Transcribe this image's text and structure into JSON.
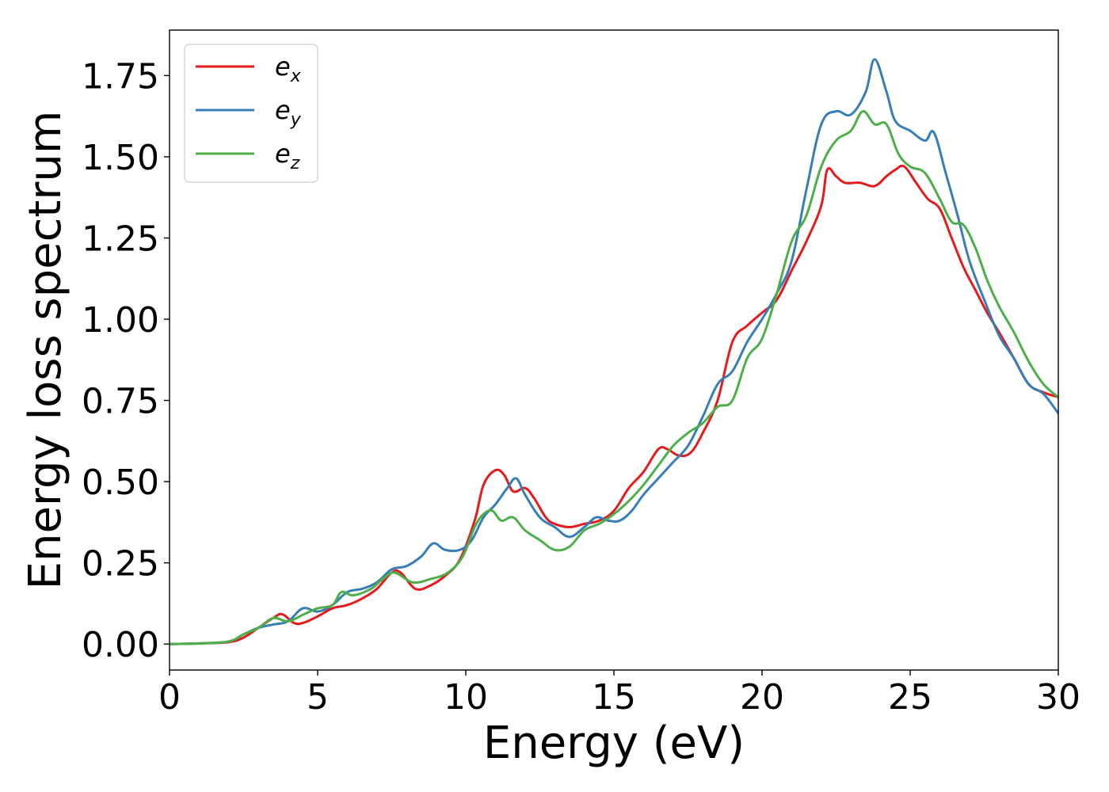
{
  "chart_data": {
    "type": "line",
    "title": "",
    "xlabel": "Energy (eV)",
    "ylabel": "Energy loss spectrum",
    "xlim": [
      0,
      30
    ],
    "ylim": [
      -0.08,
      1.89
    ],
    "xticks": [
      0,
      5,
      10,
      15,
      20,
      25,
      30
    ],
    "xtick_labels": [
      "0",
      "5",
      "10",
      "15",
      "20",
      "25",
      "30"
    ],
    "yticks": [
      0.0,
      0.25,
      0.5,
      0.75,
      1.0,
      1.25,
      1.5,
      1.75
    ],
    "ytick_labels": [
      "0.00",
      "0.25",
      "0.50",
      "0.75",
      "1.00",
      "1.25",
      "1.50",
      "1.75"
    ],
    "grid": false,
    "legend_position": "top-left",
    "series": [
      {
        "name": "e_x",
        "label_base": "e",
        "label_sub": "x",
        "color": "#e41a1c",
        "x": [
          0,
          1,
          2,
          2.5,
          3,
          3.5,
          3.8,
          4.2,
          4.5,
          5.0,
          5.5,
          6.0,
          6.5,
          7.0,
          7.5,
          7.8,
          8.3,
          8.8,
          9.3,
          9.8,
          10.3,
          10.6,
          11.0,
          11.3,
          11.6,
          12.0,
          12.3,
          12.7,
          13.0,
          13.5,
          14.0,
          14.5,
          15.0,
          15.5,
          16.0,
          16.5,
          16.8,
          17.2,
          17.6,
          18.0,
          18.5,
          19.0,
          19.5,
          20.0,
          20.5,
          21.0,
          21.5,
          22.0,
          22.2,
          22.5,
          22.8,
          23.3,
          23.8,
          24.2,
          24.5,
          24.8,
          25.2,
          25.6,
          26.0,
          26.4,
          26.8,
          27.2,
          27.6,
          28.0,
          28.5,
          29.0,
          29.5,
          30.0
        ],
        "y": [
          0.0,
          0.002,
          0.006,
          0.02,
          0.05,
          0.08,
          0.092,
          0.065,
          0.065,
          0.085,
          0.11,
          0.12,
          0.14,
          0.17,
          0.22,
          0.22,
          0.17,
          0.18,
          0.21,
          0.26,
          0.38,
          0.49,
          0.535,
          0.52,
          0.47,
          0.48,
          0.45,
          0.39,
          0.37,
          0.36,
          0.37,
          0.38,
          0.41,
          0.48,
          0.53,
          0.6,
          0.6,
          0.58,
          0.59,
          0.65,
          0.75,
          0.93,
          0.98,
          1.02,
          1.06,
          1.15,
          1.24,
          1.35,
          1.46,
          1.44,
          1.42,
          1.42,
          1.41,
          1.44,
          1.46,
          1.47,
          1.42,
          1.37,
          1.34,
          1.25,
          1.16,
          1.09,
          1.02,
          0.96,
          0.88,
          0.8,
          0.775,
          0.76
        ]
      },
      {
        "name": "e_y",
        "label_base": "e",
        "label_sub": "y",
        "color": "#377eb8",
        "x": [
          0,
          1,
          2,
          2.5,
          3,
          3.5,
          4.0,
          4.5,
          5.0,
          5.5,
          6.0,
          6.5,
          7.0,
          7.5,
          8.0,
          8.5,
          8.9,
          9.3,
          9.8,
          10.2,
          10.6,
          11.0,
          11.4,
          11.7,
          12.0,
          12.5,
          13.0,
          13.5,
          14.0,
          14.4,
          14.8,
          15.2,
          15.6,
          16.0,
          16.5,
          17.0,
          17.5,
          18.0,
          18.5,
          19.0,
          19.5,
          20.0,
          20.5,
          21.0,
          21.5,
          22.0,
          22.5,
          23.0,
          23.5,
          23.8,
          24.2,
          24.5,
          25.0,
          25.5,
          25.8,
          26.2,
          26.6,
          27.0,
          27.5,
          28.0,
          28.5,
          29.0,
          29.5,
          30.0
        ],
        "y": [
          0.0,
          0.002,
          0.008,
          0.03,
          0.05,
          0.06,
          0.07,
          0.11,
          0.1,
          0.12,
          0.16,
          0.17,
          0.19,
          0.23,
          0.24,
          0.27,
          0.31,
          0.29,
          0.29,
          0.32,
          0.39,
          0.43,
          0.48,
          0.51,
          0.46,
          0.39,
          0.36,
          0.33,
          0.36,
          0.39,
          0.38,
          0.38,
          0.41,
          0.46,
          0.51,
          0.56,
          0.61,
          0.7,
          0.8,
          0.84,
          0.93,
          1.0,
          1.08,
          1.18,
          1.4,
          1.6,
          1.64,
          1.63,
          1.7,
          1.8,
          1.7,
          1.61,
          1.58,
          1.55,
          1.575,
          1.45,
          1.32,
          1.18,
          1.06,
          0.95,
          0.88,
          0.8,
          0.77,
          0.71
        ]
      },
      {
        "name": "e_z",
        "label_base": "e",
        "label_sub": "z",
        "color": "#4daf4a",
        "x": [
          0,
          1,
          2,
          2.5,
          3,
          3.5,
          4.0,
          4.5,
          5.0,
          5.5,
          5.8,
          6.2,
          6.8,
          7.2,
          7.6,
          8.2,
          8.8,
          9.4,
          9.9,
          10.3,
          10.6,
          10.9,
          11.2,
          11.6,
          12.0,
          12.5,
          13.0,
          13.5,
          14.0,
          14.5,
          15.0,
          15.5,
          16.0,
          16.5,
          17.0,
          17.5,
          18.0,
          18.5,
          19.0,
          19.5,
          20.0,
          20.5,
          21.0,
          21.5,
          22.0,
          22.5,
          23.0,
          23.4,
          23.8,
          24.2,
          24.6,
          25.0,
          25.5,
          26.0,
          26.4,
          26.8,
          27.2,
          27.6,
          28.0,
          28.5,
          29.0,
          29.5,
          30.0
        ],
        "y": [
          0.0,
          0.002,
          0.008,
          0.03,
          0.05,
          0.08,
          0.07,
          0.09,
          0.11,
          0.12,
          0.16,
          0.15,
          0.17,
          0.2,
          0.22,
          0.19,
          0.2,
          0.22,
          0.27,
          0.36,
          0.4,
          0.41,
          0.38,
          0.39,
          0.35,
          0.32,
          0.29,
          0.3,
          0.35,
          0.37,
          0.4,
          0.44,
          0.49,
          0.55,
          0.61,
          0.65,
          0.68,
          0.73,
          0.75,
          0.88,
          0.94,
          1.08,
          1.24,
          1.32,
          1.47,
          1.55,
          1.58,
          1.64,
          1.6,
          1.6,
          1.51,
          1.47,
          1.45,
          1.37,
          1.3,
          1.29,
          1.22,
          1.12,
          1.04,
          0.96,
          0.87,
          0.8,
          0.76
        ]
      }
    ]
  }
}
